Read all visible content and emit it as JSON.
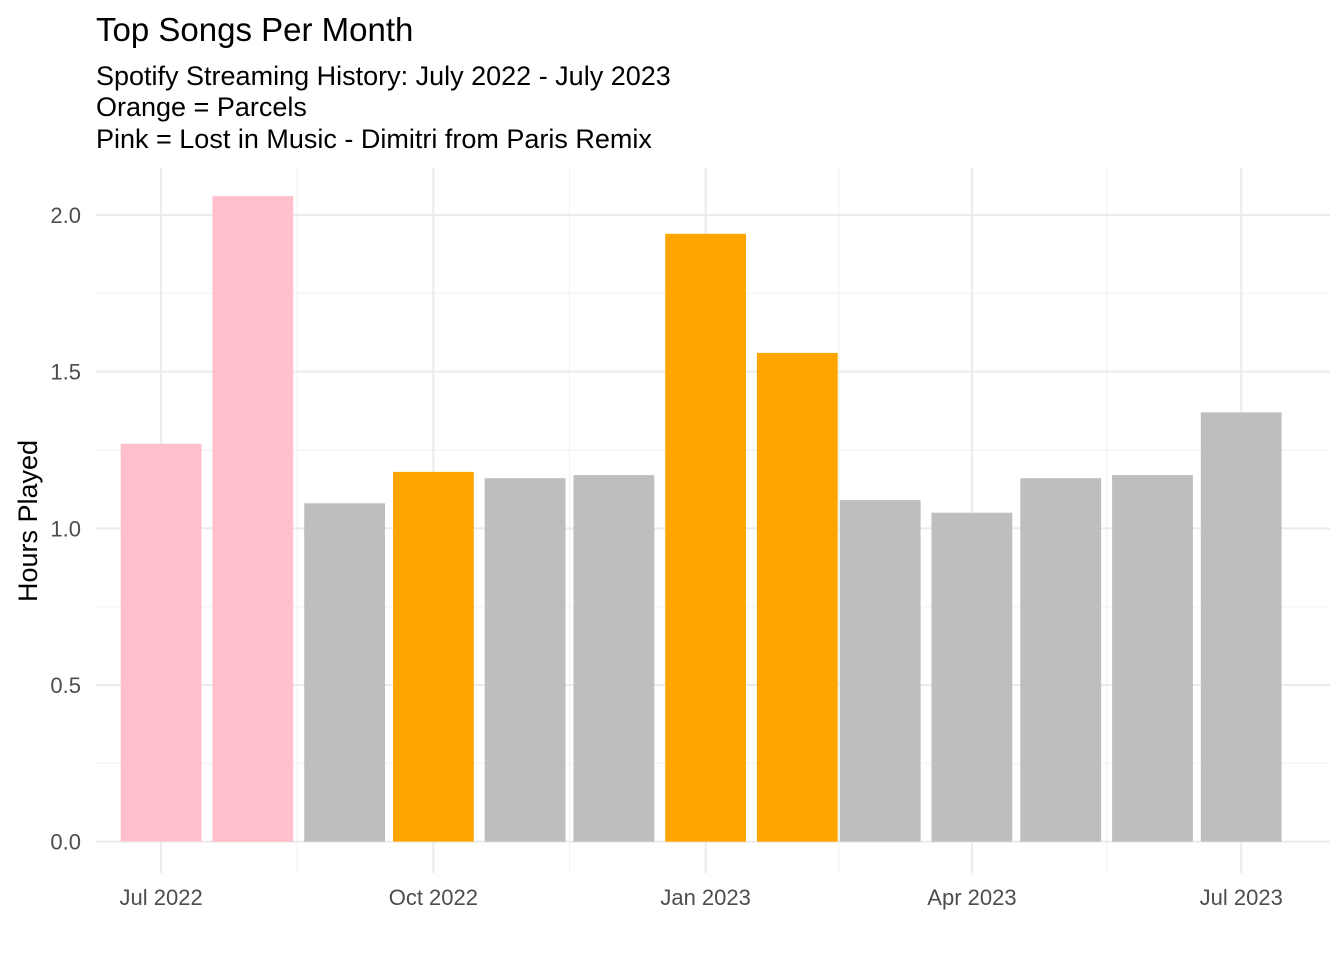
{
  "chart_data": {
    "type": "bar",
    "title": "Top Songs Per Month",
    "subtitle_lines": [
      "Spotify Streaming History: July 2022 - July 2023",
      "Orange = Parcels",
      "Pink = Lost in Music - Dimitri from Paris Remix"
    ],
    "xlabel": "",
    "ylabel": "Hours Played",
    "ylim": [
      -0.1,
      2.15
    ],
    "y_ticks": [
      0.0,
      0.5,
      1.0,
      1.5,
      2.0
    ],
    "y_tick_labels": [
      "0.0",
      "0.5",
      "1.0",
      "1.5",
      "2.0"
    ],
    "x_range": [
      "2022-06-09",
      "2023-07-31"
    ],
    "x_ticks": [
      "2022-07-01",
      "2022-10-01",
      "2023-01-01",
      "2023-04-01",
      "2023-07-01"
    ],
    "x_tick_labels": [
      "Jul 2022",
      "Oct 2022",
      "Jan 2023",
      "Apr 2023",
      "Jul 2023"
    ],
    "grid": true,
    "legend": "none",
    "colors": {
      "pink": "#ffc0cb",
      "orange": "#ffa500",
      "gray": "#bebebe"
    },
    "bars": [
      {
        "month": "2022-07-01",
        "value": 1.27,
        "color": "pink"
      },
      {
        "month": "2022-08-01",
        "value": 2.06,
        "color": "pink"
      },
      {
        "month": "2022-09-01",
        "value": 1.08,
        "color": "gray"
      },
      {
        "month": "2022-10-01",
        "value": 1.18,
        "color": "orange"
      },
      {
        "month": "2022-11-01",
        "value": 1.16,
        "color": "gray"
      },
      {
        "month": "2022-12-01",
        "value": 1.17,
        "color": "gray"
      },
      {
        "month": "2023-01-01",
        "value": 1.94,
        "color": "orange"
      },
      {
        "month": "2023-02-01",
        "value": 1.56,
        "color": "orange"
      },
      {
        "month": "2023-03-01",
        "value": 1.09,
        "color": "gray"
      },
      {
        "month": "2023-04-01",
        "value": 1.05,
        "color": "gray"
      },
      {
        "month": "2023-05-01",
        "value": 1.16,
        "color": "gray"
      },
      {
        "month": "2023-06-01",
        "value": 1.17,
        "color": "gray"
      },
      {
        "month": "2023-07-01",
        "value": 1.37,
        "color": "gray"
      }
    ]
  }
}
